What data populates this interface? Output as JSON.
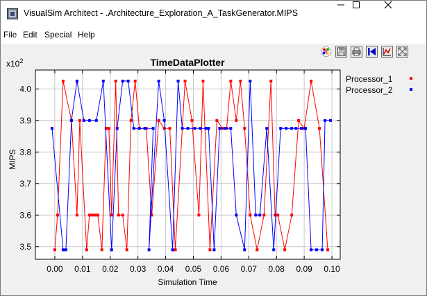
{
  "window": {
    "title": "VisualSim Architect - .Architecture_Exploration_A_TaskGenerator.MIPS",
    "buttons": [
      "minimize",
      "maximize",
      "close"
    ]
  },
  "menu": [
    "File",
    "Edit",
    "Special",
    "Help"
  ],
  "toolbar_icons": [
    "color-palette-icon",
    "save-icon",
    "print-icon",
    "reset-axes-icon",
    "fill-plot-icon",
    "fullscreen-icon"
  ],
  "chart_data": {
    "type": "line",
    "title": "TimeDataPlotter",
    "xlabel": "Simulation Time",
    "ylabel": "MIPS",
    "y_exponent_label": "x10",
    "y_exponent_power": "2",
    "xlim": [
      -0.007,
      0.103
    ],
    "ylim": [
      3.46,
      4.06
    ],
    "x_ticks": [
      0.0,
      0.01,
      0.02,
      0.03,
      0.04,
      0.05,
      0.06,
      0.07,
      0.08,
      0.09,
      0.1
    ],
    "x_tick_labels": [
      "0.00",
      "0.01",
      "0.02",
      "0.03",
      "0.04",
      "0.05",
      "0.06",
      "0.07",
      "0.08",
      "0.09",
      "0.10"
    ],
    "y_ticks": [
      3.5,
      3.6,
      3.7,
      3.8,
      3.9,
      4.0
    ],
    "y_tick_labels": [
      "3.5",
      "3.6",
      "3.7",
      "3.8",
      "3.9",
      "4.0"
    ],
    "grid": true,
    "legend_position": "right",
    "series": [
      {
        "name": "Processor_1",
        "color": "#ff0000",
        "points": [
          [
            0.0,
            3.49
          ],
          [
            0.001,
            3.6
          ],
          [
            0.003,
            4.025
          ],
          [
            0.006,
            3.9
          ],
          [
            0.008,
            3.6
          ],
          [
            0.009,
            3.9
          ],
          [
            0.0115,
            3.49
          ],
          [
            0.0125,
            3.6
          ],
          [
            0.0135,
            3.6
          ],
          [
            0.0145,
            3.6
          ],
          [
            0.0155,
            3.6
          ],
          [
            0.017,
            3.49
          ],
          [
            0.0185,
            3.875
          ],
          [
            0.0195,
            3.875
          ],
          [
            0.0205,
            3.6
          ],
          [
            0.022,
            4.025
          ],
          [
            0.023,
            3.6
          ],
          [
            0.0245,
            3.6
          ],
          [
            0.026,
            3.49
          ],
          [
            0.0275,
            3.9
          ],
          [
            0.029,
            4.025
          ],
          [
            0.0305,
            3.875
          ],
          [
            0.033,
            3.875
          ],
          [
            0.035,
            3.6
          ],
          [
            0.0375,
            3.9
          ],
          [
            0.0395,
            3.875
          ],
          [
            0.0415,
            3.875
          ],
          [
            0.0435,
            3.49
          ],
          [
            0.047,
            4.025
          ],
          [
            0.0495,
            3.9
          ],
          [
            0.052,
            3.6
          ],
          [
            0.0535,
            4.025
          ],
          [
            0.056,
            3.49
          ],
          [
            0.0585,
            3.9
          ],
          [
            0.0605,
            3.875
          ],
          [
            0.062,
            3.875
          ],
          [
            0.0635,
            4.025
          ],
          [
            0.0655,
            3.9
          ],
          [
            0.067,
            4.025
          ],
          [
            0.0685,
            3.875
          ],
          [
            0.0705,
            3.6
          ],
          [
            0.073,
            3.49
          ],
          [
            0.0755,
            3.6
          ],
          [
            0.078,
            4.025
          ],
          [
            0.0795,
            3.6
          ],
          [
            0.0805,
            3.6
          ],
          [
            0.083,
            3.49
          ],
          [
            0.0855,
            3.6
          ],
          [
            0.088,
            3.9
          ],
          [
            0.09,
            3.875
          ],
          [
            0.0925,
            4.025
          ],
          [
            0.0955,
            3.875
          ],
          [
            0.0985,
            3.49
          ]
        ]
      },
      {
        "name": "Processor_2",
        "color": "#0000ff",
        "points": [
          [
            -0.001,
            3.875
          ],
          [
            0.003,
            3.49
          ],
          [
            0.004,
            3.49
          ],
          [
            0.006,
            3.9
          ],
          [
            0.008,
            4.025
          ],
          [
            0.0105,
            3.9
          ],
          [
            0.0125,
            3.9
          ],
          [
            0.015,
            3.9
          ],
          [
            0.0175,
            4.025
          ],
          [
            0.0205,
            3.49
          ],
          [
            0.0225,
            3.875
          ],
          [
            0.0245,
            4.025
          ],
          [
            0.0265,
            4.025
          ],
          [
            0.0285,
            3.875
          ],
          [
            0.0305,
            3.875
          ],
          [
            0.0325,
            3.875
          ],
          [
            0.0355,
            3.875
          ],
          [
            0.034,
            3.49
          ],
          [
            0.0375,
            4.025
          ],
          [
            0.0395,
            3.9
          ],
          [
            0.0425,
            3.49
          ],
          [
            0.0445,
            4.025
          ],
          [
            0.046,
            3.875
          ],
          [
            0.048,
            3.875
          ],
          [
            0.0505,
            3.875
          ],
          [
            0.0525,
            3.875
          ],
          [
            0.0545,
            3.875
          ],
          [
            0.0555,
            3.875
          ],
          [
            0.0575,
            3.49
          ],
          [
            0.0595,
            3.875
          ],
          [
            0.0615,
            3.875
          ],
          [
            0.0635,
            3.875
          ],
          [
            0.0655,
            3.6
          ],
          [
            0.0685,
            3.49
          ],
          [
            0.0705,
            4.025
          ],
          [
            0.0725,
            3.6
          ],
          [
            0.074,
            3.6
          ],
          [
            0.0765,
            3.875
          ],
          [
            0.079,
            3.49
          ],
          [
            0.0815,
            3.875
          ],
          [
            0.0835,
            3.875
          ],
          [
            0.0855,
            3.875
          ],
          [
            0.087,
            3.875
          ],
          [
            0.089,
            3.875
          ],
          [
            0.0905,
            3.875
          ],
          [
            0.0925,
            3.49
          ],
          [
            0.0945,
            3.49
          ],
          [
            0.0965,
            3.49
          ],
          [
            0.0975,
            3.9
          ],
          [
            0.0995,
            3.9
          ]
        ]
      }
    ]
  }
}
